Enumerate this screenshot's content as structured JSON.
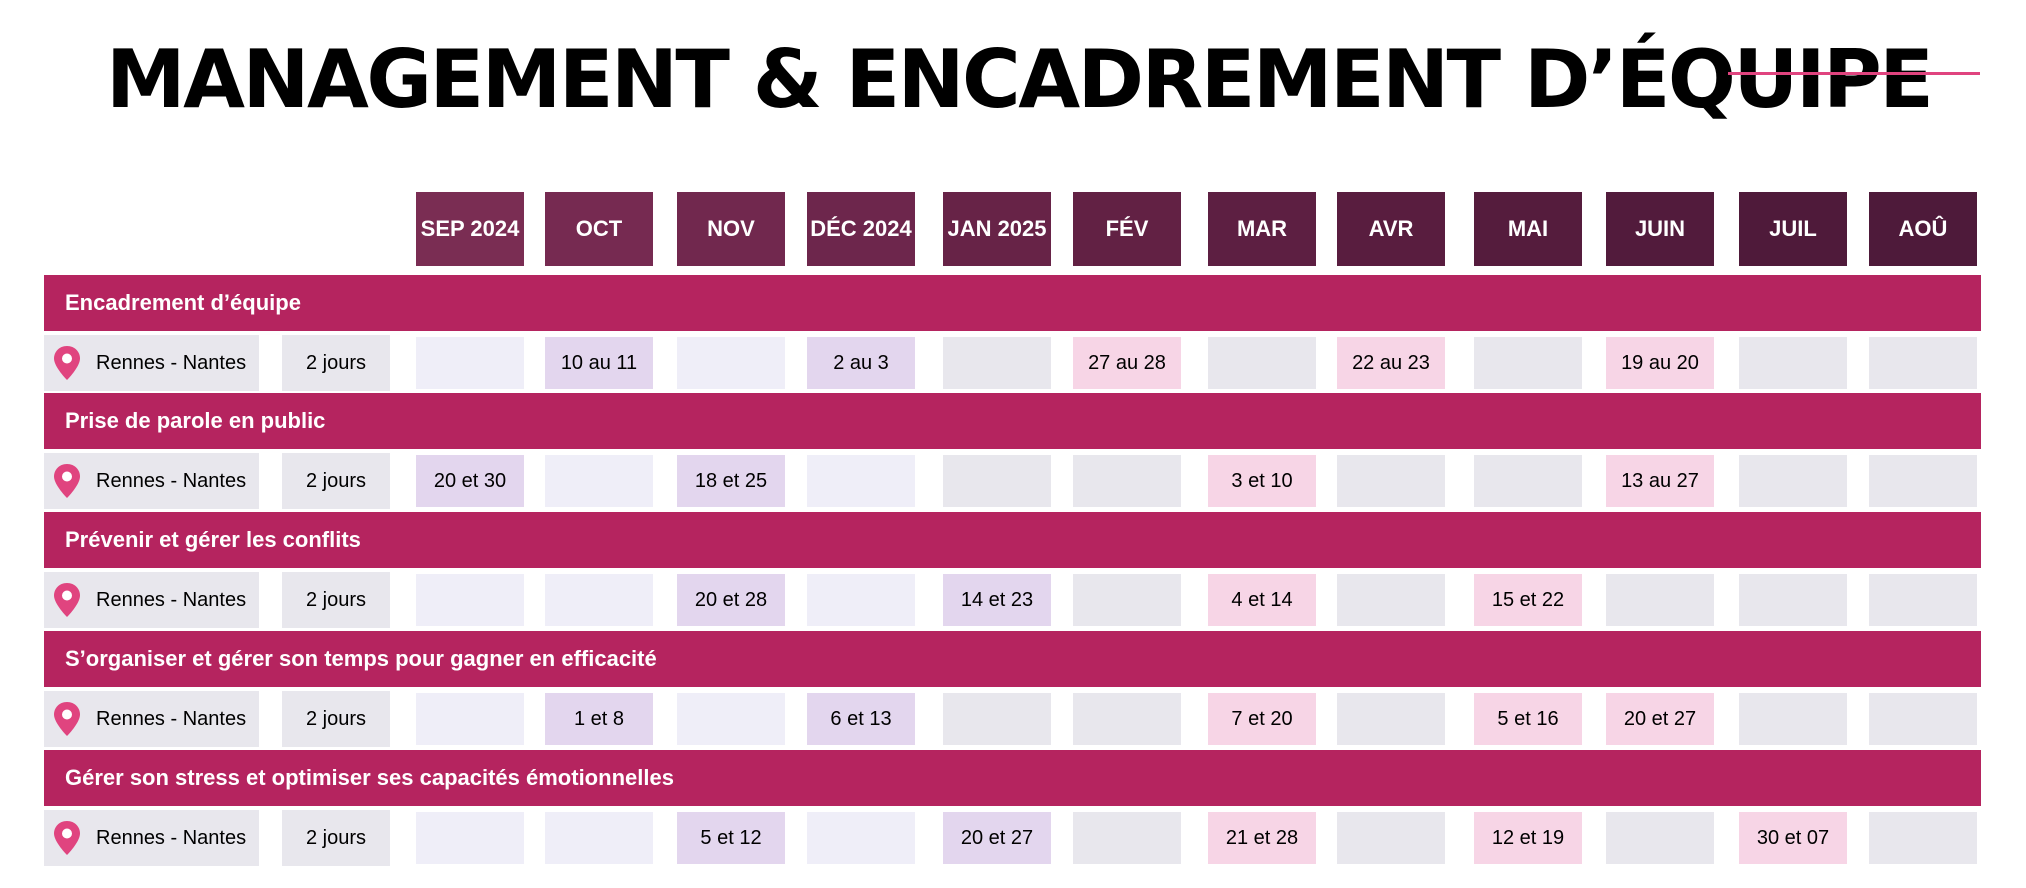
{
  "title": "MANAGEMENT & ENCADREMENT D’ÉQUIPE",
  "colors": {
    "accent": "#e0447f",
    "section_bar": "#b5245f",
    "month_header_start": "#7a2d53",
    "month_header_end": "#4e1a3a",
    "cell_grey": "#e8e7ed",
    "cell_light": "#efeef8",
    "cell_purple": "#e3d6ee",
    "cell_pink": "#f7d5e6"
  },
  "months": [
    "SEP 2024",
    "OCT",
    "NOV",
    "DÉC 2024",
    "JAN 2025",
    "FÉV",
    "MAR",
    "AVR",
    "MAI",
    "JUIN",
    "JUIL",
    "AOÛ"
  ],
  "pin_icon": "location-pin-icon",
  "sections": [
    {
      "title": "Encadrement d’équipe",
      "location": "Rennes - Nantes",
      "duration": "2 jours",
      "cells": [
        "",
        "10 au 11",
        "",
        "2 au 3",
        "",
        "27 au 28",
        "",
        "22 au 23",
        "",
        "19 au 20",
        "",
        ""
      ]
    },
    {
      "title": "Prise de parole en public",
      "location": "Rennes - Nantes",
      "duration": "2 jours",
      "cells": [
        "20 et 30",
        "",
        "18 et 25",
        "",
        "",
        "",
        "3 et 10",
        "",
        "",
        "13 au 27",
        "",
        ""
      ]
    },
    {
      "title": "Prévenir et gérer les conflits",
      "location": "Rennes - Nantes",
      "duration": "2 jours",
      "cells": [
        "",
        "",
        "20 et 28",
        "",
        "14 et 23",
        "",
        "4 et 14",
        "",
        "15 et 22",
        "",
        "",
        ""
      ]
    },
    {
      "title": "S’organiser et gérer son temps pour gagner en efficacité",
      "location": "Rennes - Nantes",
      "duration": "2 jours",
      "cells": [
        "",
        "1 et 8",
        "",
        "6 et 13",
        "",
        "",
        "7 et 20",
        "",
        "5 et 16",
        "20 et 27",
        "",
        ""
      ]
    },
    {
      "title": "Gérer son stress et optimiser ses capacités émotionnelles",
      "location": "Rennes - Nantes",
      "duration": "2 jours",
      "cells": [
        "",
        "",
        "5 et 12",
        "",
        "20 et 27",
        "",
        "21 et 28",
        "",
        "12 et 19",
        "",
        "30 et 07",
        ""
      ]
    }
  ]
}
